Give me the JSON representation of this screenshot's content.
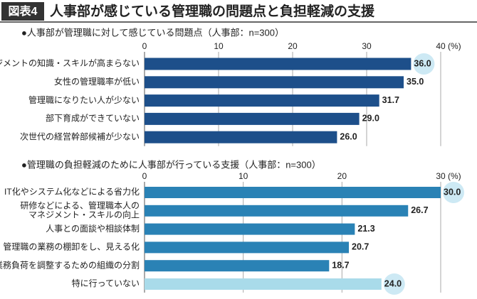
{
  "header": {
    "label": "図表4",
    "title": "人事部が感じている管理職の問題点と負担軽減の支援"
  },
  "chart_data": [
    {
      "type": "hbar",
      "title": "●人事部が管理職に対して感じている問題点（人事部：n=300）",
      "unit": "(%)",
      "categories": [
        "マネジメントの知識・スキルが高まらない",
        "女性の管理職率が低い",
        "管理職になりたい人が少ない",
        "部下育成ができていない",
        "次世代の経営幹部候補が少ない"
      ],
      "values": [
        36,
        35,
        31.7,
        29,
        26
      ],
      "value_labels": [
        "36.0",
        "35.0",
        "31.7",
        "29.0",
        "26.0"
      ],
      "colors": [
        "#1d4f8a",
        "#1d4f8a",
        "#1d4f8a",
        "#1d4f8a",
        "#1d4f8a"
      ],
      "highlight": [
        0
      ],
      "xlim": [
        0,
        40
      ],
      "xticks": [
        0,
        10,
        20,
        30,
        40
      ],
      "grid": true
    },
    {
      "type": "hbar",
      "title": "●管理職の負担軽減のために人事部が行っている支援（人事部：n=300）",
      "unit": "(%)",
      "categories": [
        "IT化やシステム化などによる省力化",
        "研修などによる、管理職本人の\nマネジメント・スキルの向上",
        "人事との面談や相談体制",
        "管理職の業務の棚卸をし、見える化",
        "業務負荷を調整するための組織の分割",
        "特に行っていない"
      ],
      "values": [
        30,
        26.7,
        21.3,
        20.7,
        18.7,
        24
      ],
      "value_labels": [
        "30.0",
        "26.7",
        "21.3",
        "20.7",
        "18.7",
        "24.0"
      ],
      "colors": [
        "#2a82b5",
        "#2a82b5",
        "#2a82b5",
        "#2a82b5",
        "#2a82b5",
        "#a9dbea"
      ],
      "highlight": [
        0,
        5
      ],
      "xlim": [
        0,
        30
      ],
      "xticks": [
        0,
        10,
        20,
        30
      ],
      "grid": true
    }
  ]
}
